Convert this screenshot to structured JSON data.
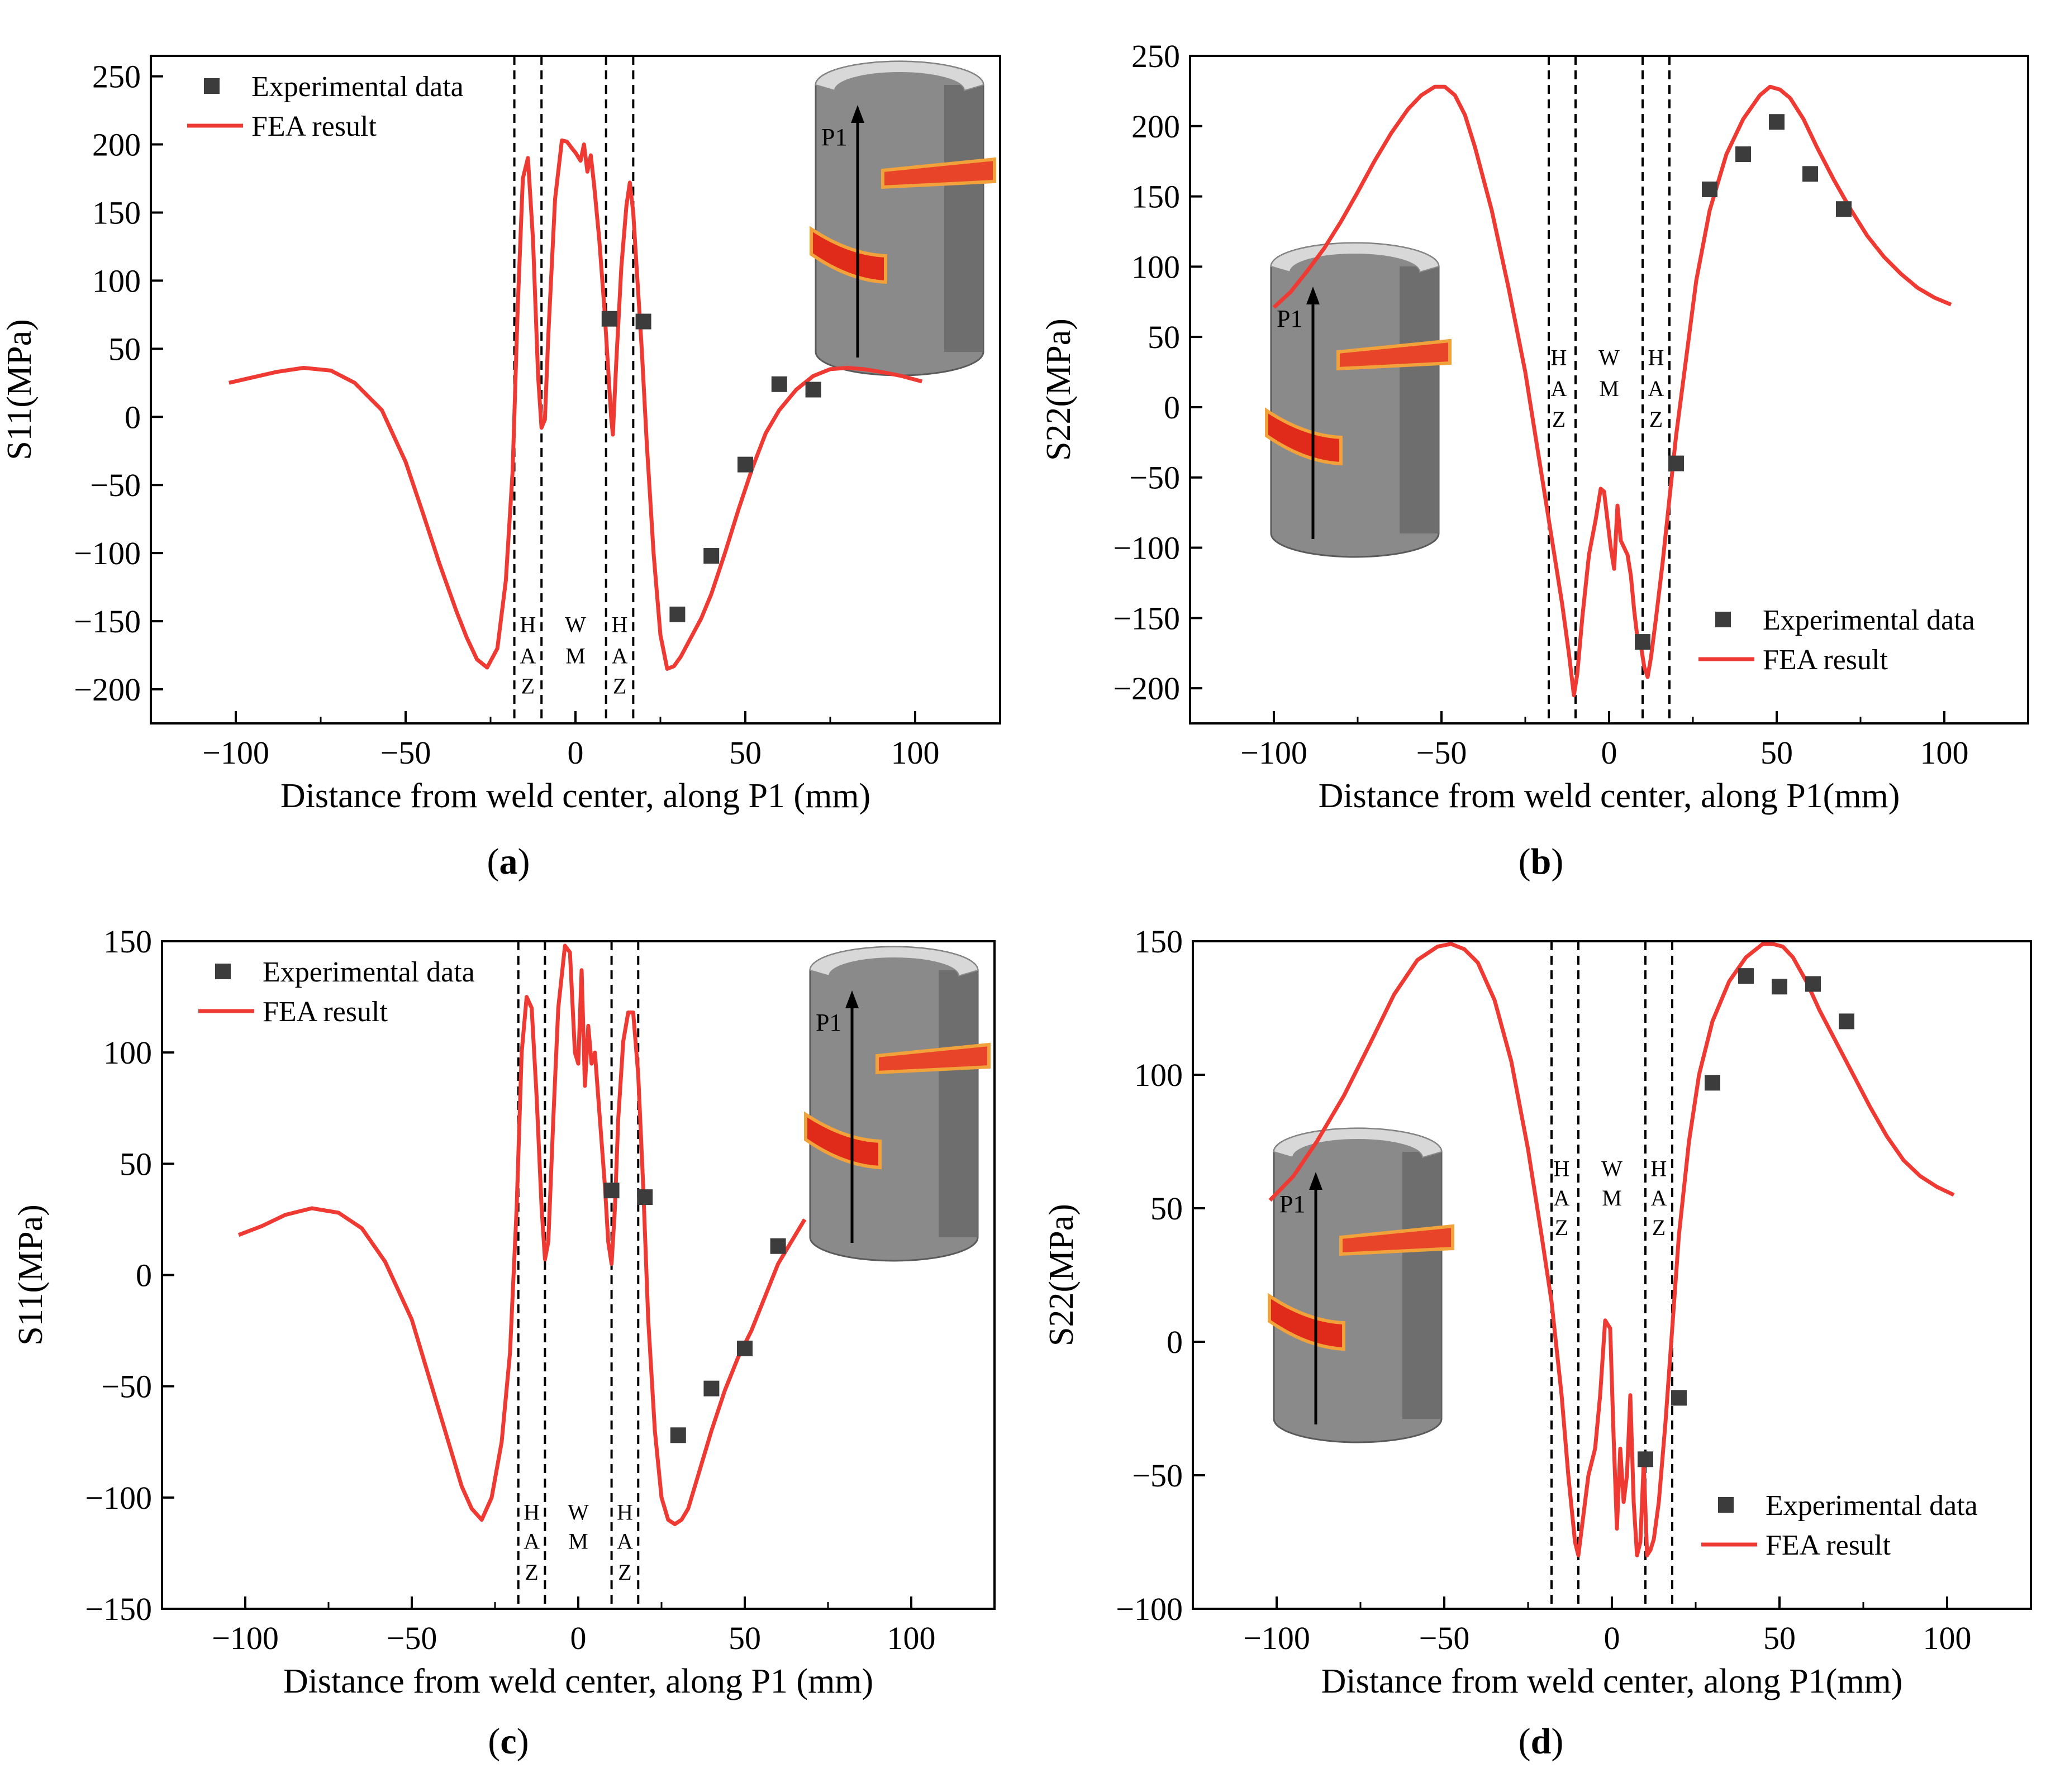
{
  "colors": {
    "fea": "#ee3a32",
    "experimental": "#3c3c3c",
    "axis": "#000000"
  },
  "chart_data": [
    {
      "id": "a",
      "caption": "a",
      "type": "scatter+line",
      "xlabel": "Distance from weld center, along P1 (mm)",
      "ylabel": "S11(MPa)",
      "xlim": [
        -125,
        125
      ],
      "ylim": [
        -225,
        265
      ],
      "xticks": [
        -100,
        -50,
        0,
        50,
        100
      ],
      "yticks": [
        -200,
        -150,
        -100,
        -50,
        0,
        50,
        100,
        150,
        200,
        250
      ],
      "legend": {
        "position": "top-left",
        "experimental_label": "Experimental data",
        "fea_label": "FEA result"
      },
      "inset": "top-right",
      "inset_label": "P1",
      "zone_lines": [
        -18,
        -10,
        9,
        17
      ],
      "zone_labels": [
        {
          "text": "H",
          "x": -14,
          "y": -158
        },
        {
          "text": "A",
          "x": -14,
          "y": -181
        },
        {
          "text": "Z",
          "x": -14,
          "y": -203
        },
        {
          "text": "W",
          "x": 0,
          "y": -158
        },
        {
          "text": "M",
          "x": 0,
          "y": -181
        },
        {
          "text": "H",
          "x": 13,
          "y": -158
        },
        {
          "text": "A",
          "x": 13,
          "y": -181
        },
        {
          "text": "Z",
          "x": 13,
          "y": -203
        }
      ],
      "experimental": {
        "x": [
          10,
          20,
          30,
          40,
          50,
          60,
          70
        ],
        "y": [
          72,
          70,
          -145,
          -102,
          -35,
          24,
          20
        ]
      },
      "fea": {
        "x": [
          -102,
          -95,
          -88,
          -80,
          -72,
          -65,
          -57,
          -50,
          -45,
          -40,
          -35,
          -32,
          -29,
          -26,
          -23,
          -20.5,
          -18.5,
          -17,
          -15.5,
          -14,
          -12.5,
          -11,
          -10,
          -9,
          -8,
          -6,
          -4,
          -2.5,
          -1,
          0,
          1.5,
          2.5,
          3.5,
          4.5,
          5.5,
          7,
          8.5,
          9.5,
          10.5,
          11,
          12,
          13.5,
          15,
          16,
          17,
          18,
          19.5,
          21,
          23,
          25,
          27,
          29,
          31,
          34,
          37,
          40,
          44,
          48,
          52,
          56,
          60,
          65,
          70,
          75,
          80,
          85,
          90,
          96,
          102
        ],
        "y": [
          25,
          29,
          33,
          36,
          34,
          25,
          5,
          -33,
          -70,
          -108,
          -143,
          -162,
          -178,
          -184,
          -170,
          -120,
          -40,
          80,
          175,
          190,
          130,
          30,
          -8,
          -2,
          60,
          160,
          203,
          202,
          197,
          194,
          188,
          200,
          180,
          192,
          170,
          130,
          80,
          40,
          0,
          -13,
          40,
          110,
          155,
          172,
          150,
          110,
          50,
          -20,
          -100,
          -160,
          -185,
          -183,
          -176,
          -162,
          -148,
          -130,
          -100,
          -68,
          -38,
          -12,
          5,
          20,
          30,
          35,
          36,
          35,
          33,
          30,
          26
        ]
      }
    },
    {
      "id": "b",
      "caption": "b",
      "type": "scatter+line",
      "xlabel": "Distance from weld center, along P1(mm)",
      "ylabel": "S22(MPa)",
      "xlim": [
        -125,
        125
      ],
      "ylim": [
        -225,
        250
      ],
      "xticks": [
        -100,
        -50,
        0,
        50,
        100
      ],
      "yticks": [
        -200,
        -150,
        -100,
        -50,
        0,
        50,
        100,
        150,
        200,
        250
      ],
      "legend": {
        "position": "bottom-right",
        "experimental_label": "Experimental data",
        "fea_label": "FEA result"
      },
      "inset": "bottom-left",
      "inset_label": "P1",
      "zone_lines": [
        -18,
        -10,
        10,
        18
      ],
      "zone_labels": [
        {
          "text": "H",
          "x": -15,
          "y": 30
        },
        {
          "text": "A",
          "x": -15,
          "y": 8
        },
        {
          "text": "Z",
          "x": -15,
          "y": -14
        },
        {
          "text": "W",
          "x": 0,
          "y": 30
        },
        {
          "text": "M",
          "x": 0,
          "y": 8
        },
        {
          "text": "H",
          "x": 14,
          "y": 30
        },
        {
          "text": "A",
          "x": 14,
          "y": 8
        },
        {
          "text": "Z",
          "x": 14,
          "y": -14
        }
      ],
      "experimental": {
        "x": [
          10,
          20,
          30,
          40,
          50,
          60,
          70
        ],
        "y": [
          -167,
          -40,
          155,
          180,
          203,
          166,
          141
        ]
      },
      "fea": {
        "x": [
          -100,
          -95,
          -90,
          -85,
          -80,
          -75,
          -70,
          -65,
          -60,
          -56,
          -52,
          -49,
          -46,
          -43,
          -40,
          -35,
          -30,
          -25,
          -20,
          -17,
          -14,
          -12,
          -10.5,
          -9.5,
          -8,
          -6,
          -4,
          -2.5,
          -1.5,
          -0.5,
          0.5,
          1.5,
          2.5,
          3.5,
          4.5,
          5.5,
          6.5,
          7.5,
          8.5,
          9.5,
          10.5,
          11.5,
          12.5,
          14,
          16,
          18,
          20,
          23,
          26,
          30,
          35,
          40,
          45,
          48,
          51,
          54,
          58,
          62,
          67,
          72,
          77,
          82,
          87,
          92,
          97,
          102
        ],
        "y": [
          71,
          82,
          97,
          113,
          132,
          153,
          175,
          195,
          212,
          222,
          228,
          228,
          222,
          208,
          185,
          140,
          85,
          25,
          -50,
          -95,
          -140,
          -175,
          -205,
          -190,
          -150,
          -105,
          -80,
          -58,
          -60,
          -80,
          -100,
          -115,
          -70,
          -95,
          -100,
          -105,
          -120,
          -145,
          -165,
          -170,
          -185,
          -192,
          -178,
          -150,
          -110,
          -65,
          -20,
          35,
          90,
          140,
          180,
          205,
          222,
          228,
          226,
          220,
          205,
          185,
          162,
          141,
          122,
          107,
          95,
          85,
          78,
          73
        ]
      }
    },
    {
      "id": "c",
      "caption": "c",
      "type": "scatter+line",
      "xlabel": "Distance from weld center, along P1 (mm)",
      "ylabel": "S11(MPa)",
      "xlim": [
        -125,
        125
      ],
      "ylim": [
        -150,
        150
      ],
      "xticks": [
        -100,
        -50,
        0,
        50,
        100
      ],
      "yticks": [
        -150,
        -100,
        -50,
        0,
        50,
        100,
        150
      ],
      "legend": {
        "position": "top-left",
        "experimental_label": "Experimental data",
        "fea_label": "FEA result"
      },
      "inset": "top-right",
      "inset_label": "P1",
      "zone_lines": [
        -18,
        -10,
        10,
        18
      ],
      "zone_labels": [
        {
          "text": "H",
          "x": -14,
          "y": -110
        },
        {
          "text": "A",
          "x": -14,
          "y": -123
        },
        {
          "text": "Z",
          "x": -14,
          "y": -137
        },
        {
          "text": "W",
          "x": 0,
          "y": -110
        },
        {
          "text": "M",
          "x": 0,
          "y": -123
        },
        {
          "text": "H",
          "x": 14,
          "y": -110
        },
        {
          "text": "A",
          "x": 14,
          "y": -123
        },
        {
          "text": "Z",
          "x": 14,
          "y": -137
        }
      ],
      "experimental": {
        "x": [
          10,
          20,
          30,
          40,
          50,
          60
        ],
        "y": [
          38,
          35,
          -72,
          -51,
          -33,
          13
        ]
      },
      "fea": {
        "x": [
          -102,
          -95,
          -88,
          -80,
          -72,
          -65,
          -58,
          -50,
          -45,
          -40,
          -35,
          -32,
          -29,
          -26,
          -23,
          -20.5,
          -18.5,
          -17,
          -15.5,
          -14,
          -12.5,
          -11,
          -10,
          -9,
          -7.5,
          -6,
          -4,
          -2.5,
          -1,
          0,
          1,
          2,
          3,
          4,
          5,
          6.5,
          8,
          9,
          10,
          11,
          12,
          13.5,
          15,
          16.5,
          18,
          19.5,
          21,
          23,
          25,
          27,
          29,
          31,
          33,
          36,
          40,
          44,
          48,
          52,
          56,
          60,
          64,
          68
        ],
        "y": [
          18,
          22,
          27,
          30,
          28,
          21,
          6,
          -20,
          -45,
          -70,
          -95,
          -105,
          -110,
          -100,
          -75,
          -35,
          30,
          100,
          125,
          120,
          80,
          30,
          7,
          15,
          70,
          120,
          148,
          145,
          100,
          95,
          137,
          85,
          112,
          95,
          100,
          70,
          40,
          15,
          5,
          30,
          70,
          105,
          118,
          118,
          90,
          40,
          -20,
          -70,
          -100,
          -110,
          -112,
          -110,
          -105,
          -90,
          -70,
          -52,
          -37,
          -25,
          -10,
          5,
          15,
          25
        ]
      }
    },
    {
      "id": "d",
      "caption": "d",
      "type": "scatter+line",
      "xlabel": "Distance from weld center, along P1(mm)",
      "ylabel": "S22(MPa)",
      "xlim": [
        -125,
        125
      ],
      "ylim": [
        -100,
        150
      ],
      "xticks": [
        -100,
        -50,
        0,
        50,
        100
      ],
      "yticks": [
        -100,
        -50,
        0,
        50,
        100,
        150
      ],
      "legend": {
        "position": "bottom-right",
        "experimental_label": "Experimental data",
        "fea_label": "FEA result"
      },
      "inset": "bottom-left",
      "inset_label": "P1",
      "zone_lines": [
        -18,
        -10,
        10,
        18
      ],
      "zone_labels": [
        {
          "text": "H",
          "x": -15,
          "y": 62
        },
        {
          "text": "A",
          "x": -15,
          "y": 51
        },
        {
          "text": "Z",
          "x": -15,
          "y": 40
        },
        {
          "text": "W",
          "x": 0,
          "y": 62
        },
        {
          "text": "M",
          "x": 0,
          "y": 51
        },
        {
          "text": "H",
          "x": 14,
          "y": 62
        },
        {
          "text": "A",
          "x": 14,
          "y": 51
        },
        {
          "text": "Z",
          "x": 14,
          "y": 40
        }
      ],
      "experimental": {
        "x": [
          10,
          20,
          30,
          40,
          50,
          60,
          70
        ],
        "y": [
          -44,
          -21,
          97,
          137,
          133,
          134,
          120
        ]
      },
      "fea": {
        "x": [
          -102,
          -95,
          -88,
          -80,
          -72,
          -65,
          -58,
          -52,
          -48,
          -44,
          -40,
          -35,
          -30,
          -25,
          -21,
          -18,
          -15,
          -13,
          -11,
          -10,
          -9,
          -7,
          -5,
          -3.5,
          -2,
          -0.5,
          0.5,
          1.5,
          2.5,
          3.5,
          4.5,
          5.5,
          6.5,
          7.5,
          8.5,
          9.5,
          10.5,
          11.5,
          12.5,
          14,
          16,
          18,
          20,
          23,
          26,
          30,
          35,
          40,
          45,
          48,
          51,
          54,
          58,
          62,
          67,
          72,
          77,
          82,
          87,
          92,
          97,
          102
        ],
        "y": [
          53,
          62,
          75,
          92,
          112,
          130,
          143,
          148,
          149,
          147,
          142,
          128,
          105,
          72,
          40,
          15,
          -20,
          -50,
          -75,
          -80,
          -70,
          -50,
          -40,
          -20,
          8,
          5,
          -35,
          -70,
          -40,
          -60,
          -50,
          -20,
          -60,
          -80,
          -75,
          -45,
          -80,
          -78,
          -74,
          -60,
          -30,
          5,
          40,
          75,
          100,
          120,
          135,
          144,
          149,
          149,
          148,
          144,
          135,
          124,
          112,
          100,
          88,
          77,
          68,
          62,
          58,
          55
        ]
      }
    }
  ]
}
